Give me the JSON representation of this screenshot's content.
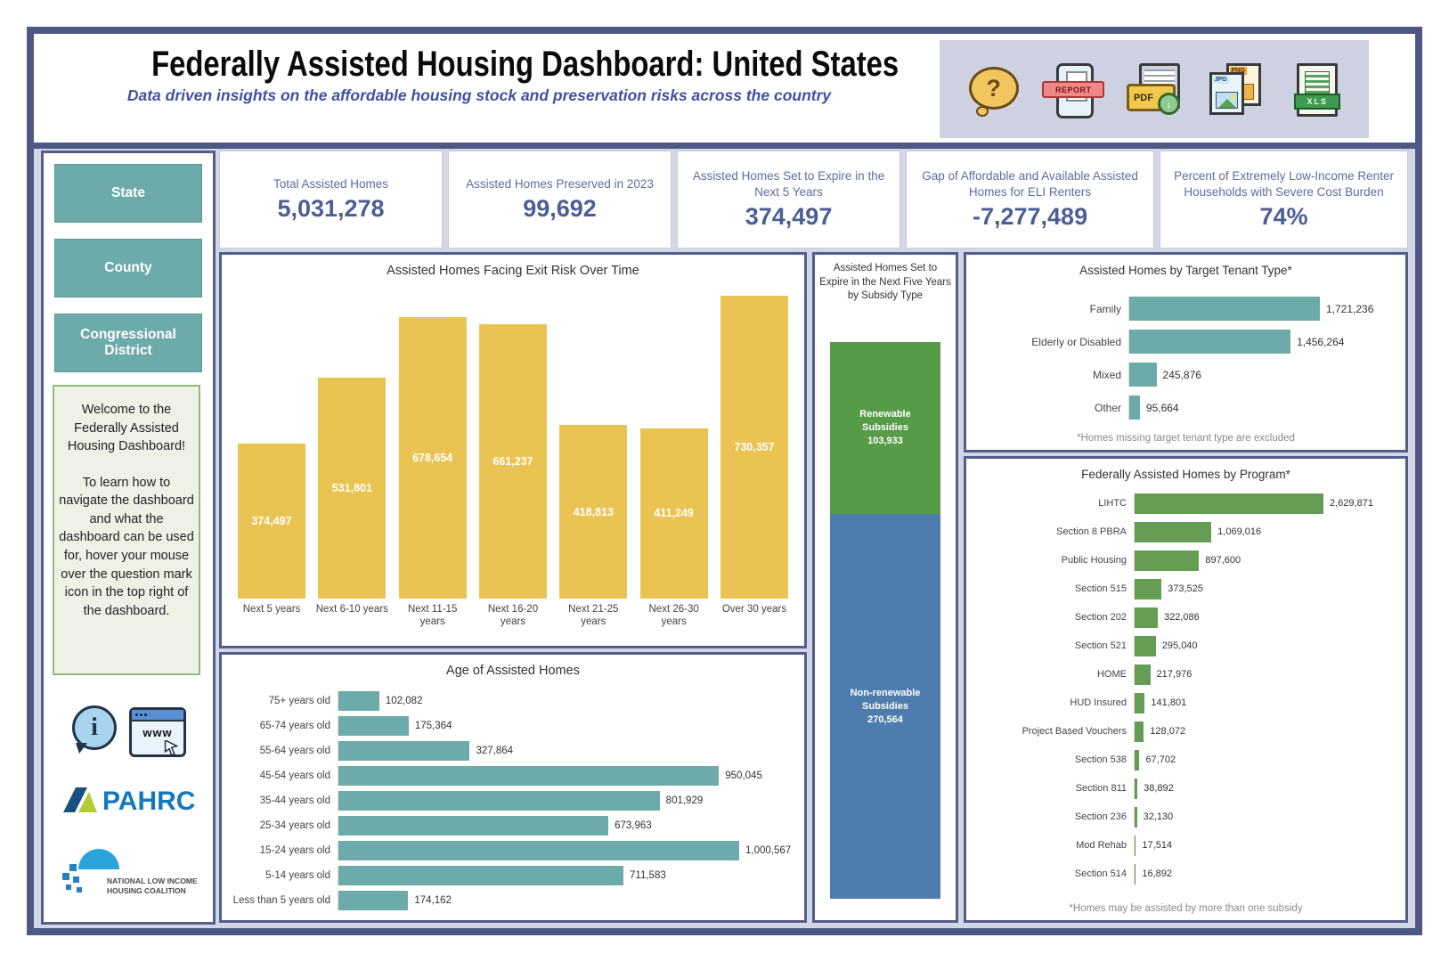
{
  "header": {
    "title": "Federally Assisted Housing Dashboard: United States",
    "subtitle": "Data driven insights on the affordable housing stock and preservation risks across the country",
    "icons": {
      "help": {
        "glyph": "?"
      },
      "report": {
        "label": "REPORT"
      },
      "pdf": {
        "label": "PDF",
        "arrow": "↓"
      },
      "image": {
        "front_label": "JPG",
        "back_label": "PNG"
      },
      "excel": {
        "label": "XLS"
      }
    }
  },
  "sidebar": {
    "filters": [
      "State",
      "County",
      "Congressional District"
    ],
    "welcome": {
      "p1": "Welcome to the Federally Assisted Housing Dashboard!",
      "p2": "To learn how to navigate the dashboard and what the dashboard can be used for, hover your mouse over the question mark icon in the top right of the dashboard."
    },
    "info_icon_glyph": "i",
    "www_icon_label": "www",
    "pahrc_label": "PAHRC",
    "nlihc_label_line1": "NATIONAL LOW INCOME",
    "nlihc_label_line2": "HOUSING COALITION"
  },
  "kpis": [
    {
      "label": "Total Assisted Homes",
      "value": "5,031,278"
    },
    {
      "label": "Assisted Homes Preserved in 2023",
      "value": "99,692"
    },
    {
      "label": "Assisted Homes Set to Expire in the Next 5 Years",
      "value": "374,497"
    },
    {
      "label": "Gap of Affordable and Available Assisted Homes for ELI Renters",
      "value": "-7,277,489"
    },
    {
      "label": "Percent of Extremely Low-Income Renter Households with Severe Cost Burden",
      "value": "74%"
    }
  ],
  "colors": {
    "frame": "#4d5885",
    "panel_gap": "#d2d6e5",
    "teal": "#6dabaa",
    "yellow": "#e9c452",
    "green": "#639c52",
    "stack_green": "#579b49",
    "stack_blue": "#4e7dad",
    "kpi_text": "#4c5e94"
  },
  "chart_data": [
    {
      "id": "exit_risk",
      "type": "bar",
      "orientation": "vertical",
      "title": "Assisted Homes Facing Exit Risk Over Time",
      "categories": [
        "Next 5 years",
        "Next 6-10 years",
        "Next 11-15 years",
        "Next 16-20 years",
        "Next 21-25 years",
        "Next 26-30 years",
        "Over 30 years"
      ],
      "values": [
        374497,
        531801,
        678654,
        661237,
        418813,
        411249,
        730357
      ],
      "bar_color": "#e9c452",
      "value_label_color": "#ffffff",
      "value_labels": "inside",
      "ylim": [
        0,
        730357
      ],
      "grid": false
    },
    {
      "id": "age",
      "type": "bar",
      "orientation": "horizontal",
      "title": "Age of Assisted Homes",
      "categories": [
        "75+ years old",
        "65-74 years old",
        "55-64 years old",
        "45-54 years old",
        "35-44 years old",
        "25-34 years old",
        "15-24 years old",
        "5-14 years old",
        "Less than 5 years old"
      ],
      "values": [
        102082,
        175364,
        327864,
        950045,
        801929,
        673963,
        1000567,
        711583,
        174162
      ],
      "bar_color": "#6dabaa",
      "value_labels": "end",
      "xlim": [
        0,
        1000567
      ],
      "grid": false
    },
    {
      "id": "expire_subsidy",
      "type": "stacked_bar",
      "orientation": "vertical",
      "title": "Assisted Homes Set to Expire in the Next Five Years by Subsidy Type",
      "segments": [
        {
          "label": "Renewable Subsidies",
          "value": 103933,
          "color": "#579b49"
        },
        {
          "label": "Non-renewable Subsidies",
          "value": 270564,
          "color": "#4e7dad"
        }
      ]
    },
    {
      "id": "tenant_type",
      "type": "bar",
      "orientation": "horizontal",
      "title": "Assisted Homes by Target Tenant Type*",
      "categories": [
        "Family",
        "Elderly or Disabled",
        "Mixed",
        "Other"
      ],
      "values": [
        1721236,
        1456264,
        245876,
        95664
      ],
      "bar_color": "#6dabaa",
      "value_labels": "end",
      "xlim": [
        0,
        1721236
      ],
      "footnote": "*Homes missing target tenant type are excluded",
      "grid": false
    },
    {
      "id": "program",
      "type": "bar",
      "orientation": "horizontal",
      "title": "Federally Assisted Homes by Program*",
      "categories": [
        "LIHTC",
        "Section 8 PBRA",
        "Public Housing",
        "Section 515",
        "Section 202",
        "Section 521",
        "HOME",
        "HUD Insured",
        "Project Based Vouchers",
        "Section 538",
        "Section 811",
        "Section 236",
        "Mod Rehab",
        "Section 514"
      ],
      "values": [
        2629871,
        1069016,
        897600,
        373525,
        322086,
        295040,
        217976,
        141801,
        128072,
        67702,
        38892,
        32130,
        17514,
        16892
      ],
      "bar_color": "#639c52",
      "value_labels": "end",
      "xlim": [
        0,
        2629871
      ],
      "footnote": "*Homes may be assisted by more than one subsidy",
      "grid": false
    }
  ]
}
